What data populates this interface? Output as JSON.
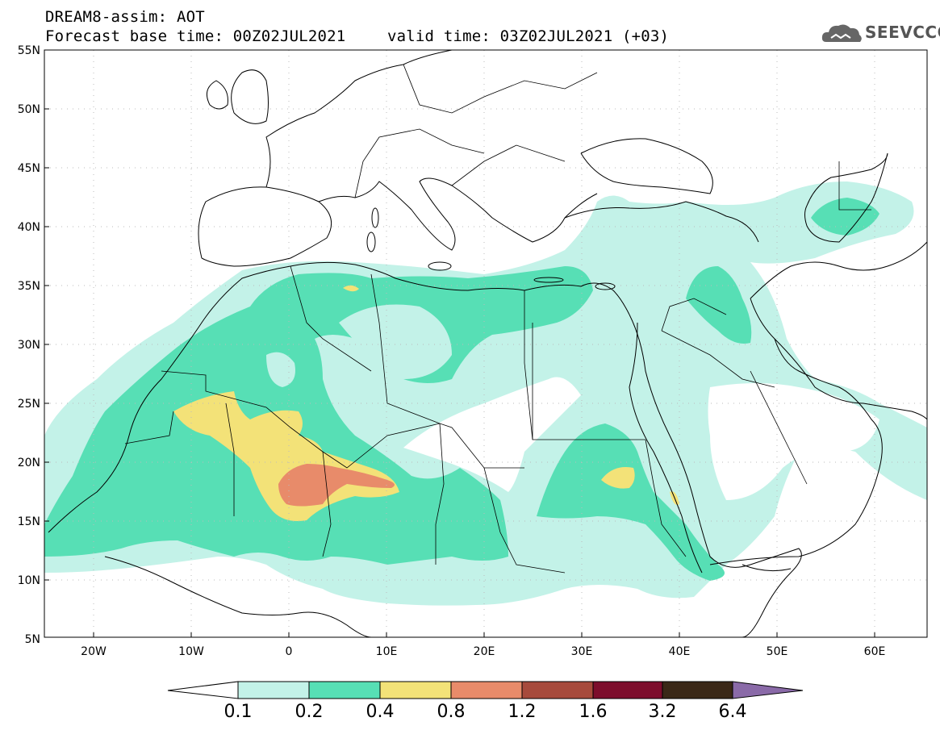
{
  "header": {
    "line1": "DREAM8-assim: AOT",
    "line2": "Forecast base time: 00Z02JUL2021",
    "line2_valid": "valid time: 03Z02JUL2021 (+03)",
    "logo_text": "SEEVCCC"
  },
  "map": {
    "lon_labels": [
      "20W",
      "10W",
      "0",
      "10E",
      "20E",
      "30E",
      "40E",
      "50E",
      "60E"
    ],
    "lat_labels": [
      "55N",
      "50N",
      "45N",
      "40N",
      "35N",
      "30N",
      "25N",
      "20N",
      "15N",
      "10N",
      "5N"
    ],
    "extent": {
      "lon": [
        -25,
        65
      ],
      "lat": [
        5,
        55
      ]
    }
  },
  "colorbar": {
    "labels": [
      "0.1",
      "0.2",
      "0.4",
      "0.8",
      "1.2",
      "1.6",
      "3.2",
      "6.4"
    ],
    "colors": [
      "#c3f2e8",
      "#57dfb5",
      "#f3e278",
      "#e88b6a",
      "#a74a3c",
      "#7d0d2c",
      "#3a2817",
      "#8a6aa8"
    ]
  }
}
